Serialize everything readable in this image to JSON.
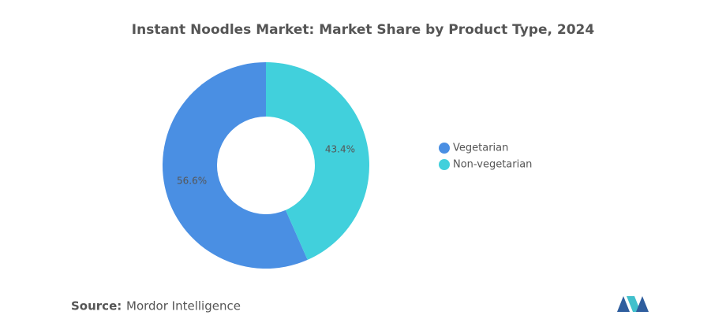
{
  "chart_data": {
    "type": "donut",
    "title": "Instant Noodles Market: Market Share by Product Type, 2024",
    "categories": [
      "Vegetarian",
      "Non-vegetarian"
    ],
    "values": [
      56.6,
      43.4
    ],
    "value_labels": [
      "56.6%",
      "43.4%"
    ],
    "colors": [
      "#4a8fe3",
      "#41d0dc"
    ],
    "legend": "right"
  },
  "footer": {
    "source_label": "Source:",
    "source": "Mordor Intelligence"
  }
}
